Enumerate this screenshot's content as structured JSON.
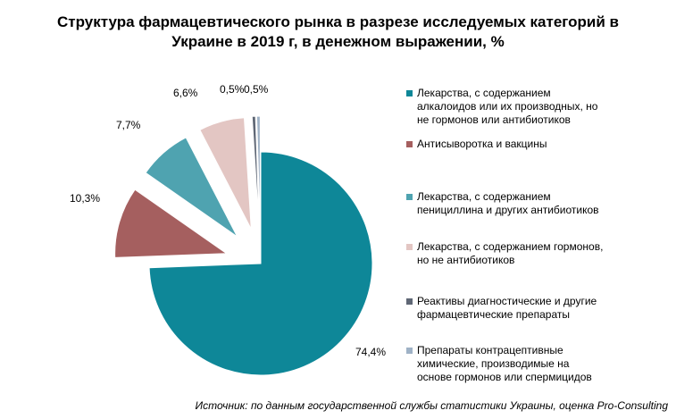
{
  "chart_data": {
    "type": "pie",
    "title_lines": [
      "Структура фармацевтического рынка в разрезе исследуемых категорий в",
      "Украине в 2019 г, в денежном выражении, %"
    ],
    "unit": "%",
    "legend_position": "right",
    "slices": [
      {
        "label": "Лекарства, с содержанием\nалкалоидов или их производных, но\nне гормонов или антибиотиков",
        "value": 74.4,
        "value_label": "74,4%",
        "color": "#0E8798"
      },
      {
        "label": "Антисыворотка и вакцины",
        "value": 10.3,
        "value_label": "10,3%",
        "color": "#A55F5F"
      },
      {
        "label": "Лекарства, с содержанием\nпенициллина и других антибиотиков",
        "value": 7.7,
        "value_label": "7,7%",
        "color": "#4FA3B0"
      },
      {
        "label": "Лекарства, с содержанием гормонов,\nно не антибиотиков",
        "value": 6.6,
        "value_label": "6,6%",
        "color": "#E3C6C3"
      },
      {
        "label": "Реактивы диагностические и другие\nфармацевтические препараты",
        "value": 0.5,
        "value_label": "0,5%",
        "color": "#5F6775"
      },
      {
        "label": "Препараты контрацептивные\nхимические, производимые на\nоснове гормонов или спермицидов",
        "value": 0.5,
        "value_label": "0,5%",
        "color": "#9FB2C6"
      }
    ]
  },
  "source_note": "Источник: по данным государственной службы статистики Украины, оценка Pro-Consulting"
}
